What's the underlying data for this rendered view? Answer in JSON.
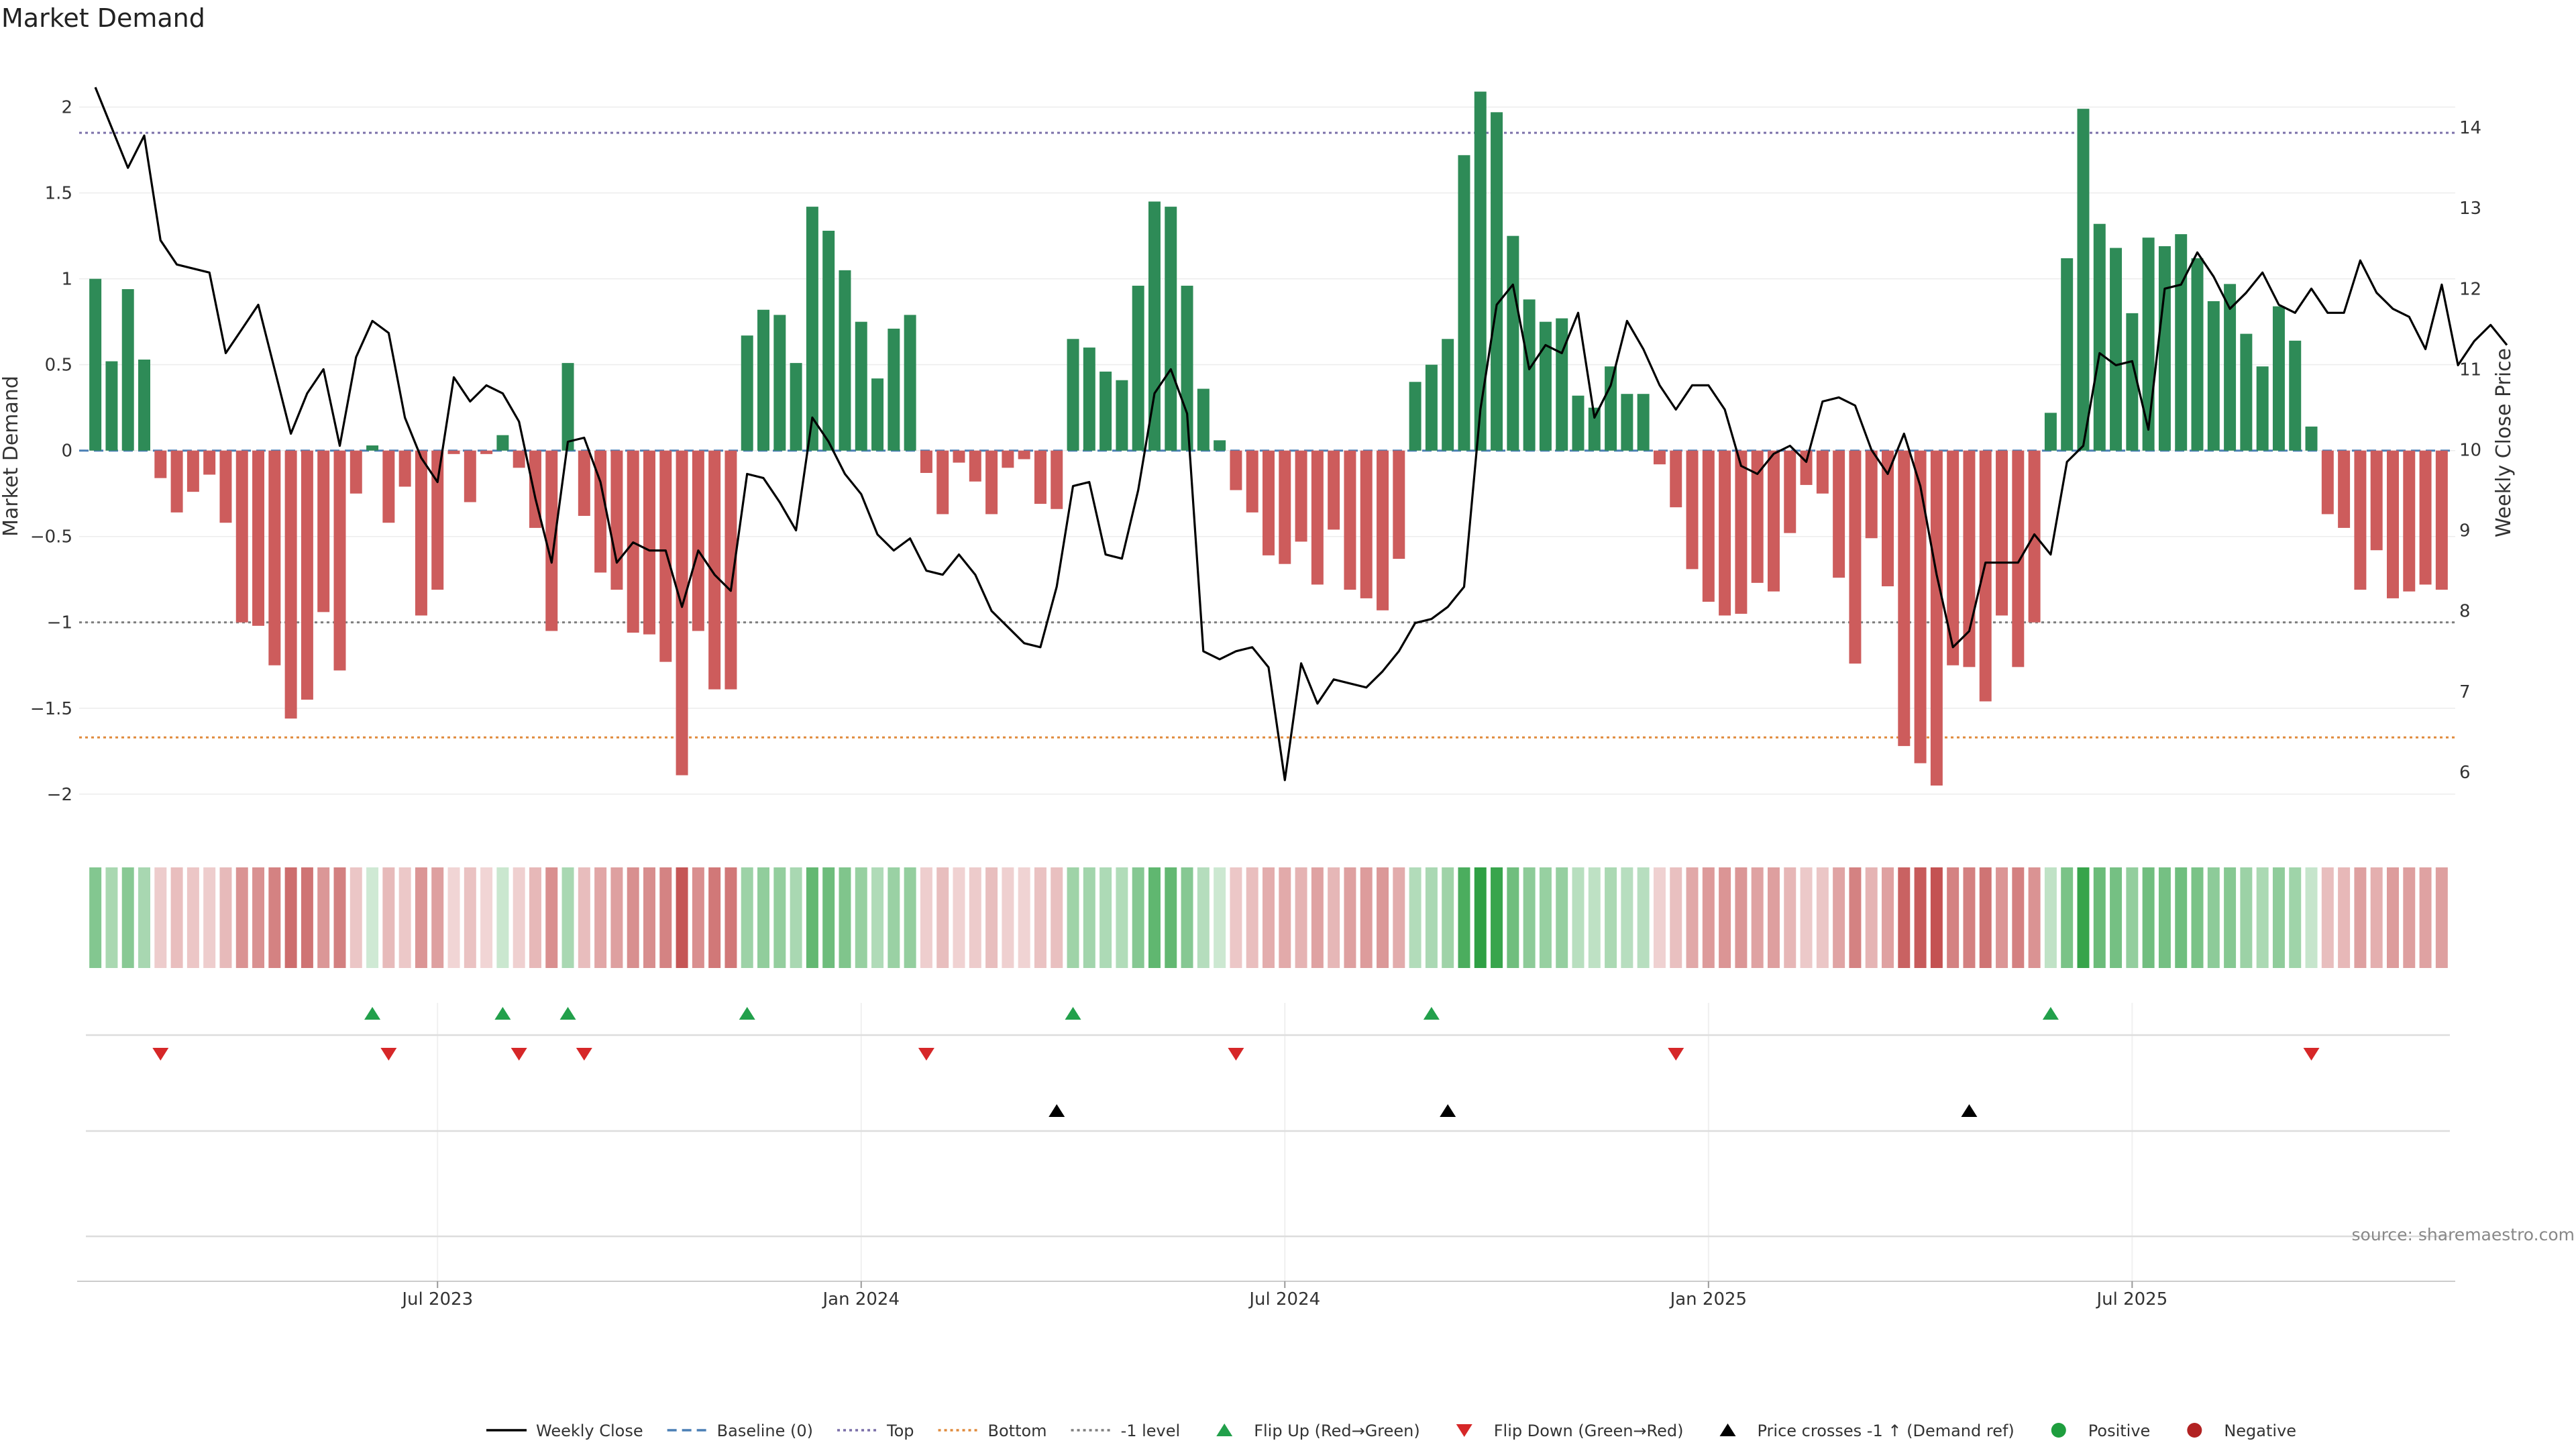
{
  "chart_data": {
    "type": "bar",
    "title": "Market Demand",
    "ylabel": "Market Demand",
    "y2label": "Weekly Close Price",
    "ylim": [
      -2.2,
      2.35
    ],
    "y2lim": [
      5.3,
      15.0
    ],
    "yticks": [
      -2,
      -1.5,
      -1,
      -0.5,
      0,
      0.5,
      1,
      1.5,
      2
    ],
    "yticks_labels": [
      "−2",
      "−1.5",
      "−1",
      "−0.5",
      "0",
      "0.5",
      "1",
      "1.5",
      "2"
    ],
    "y2ticks": [
      6,
      7,
      8,
      9,
      10,
      11,
      12,
      13,
      14
    ],
    "x_tick_labels": [
      {
        "index": 21,
        "label": "Jul 2023"
      },
      {
        "index": 47,
        "label": "Jan 2024"
      },
      {
        "index": 73,
        "label": "Jul 2024"
      },
      {
        "index": 99,
        "label": "Jan 2025"
      },
      {
        "index": 125,
        "label": "Jul 2025"
      }
    ],
    "reference_lines": {
      "baseline": 0,
      "top": 1.85,
      "bottom": -1.67,
      "minus_one_level": -1
    },
    "demand": [
      1.0,
      0.52,
      0.94,
      0.53,
      -0.16,
      -0.36,
      -0.24,
      -0.14,
      -0.42,
      -1.0,
      -1.02,
      -1.25,
      -1.56,
      -1.45,
      -0.94,
      -1.28,
      -0.25,
      0.03,
      -0.42,
      -0.21,
      -0.96,
      -0.81,
      -0.02,
      -0.3,
      -0.02,
      0.09,
      -0.1,
      -0.45,
      -1.05,
      0.51,
      -0.38,
      -0.71,
      -0.81,
      -1.06,
      -1.07,
      -1.23,
      -1.89,
      -1.05,
      -1.39,
      -1.39,
      0.67,
      0.82,
      0.79,
      0.51,
      1.42,
      1.28,
      1.05,
      0.75,
      0.42,
      0.71,
      0.79,
      -0.13,
      -0.37,
      -0.07,
      -0.18,
      -0.37,
      -0.1,
      -0.05,
      -0.31,
      -0.34,
      0.65,
      0.6,
      0.46,
      0.41,
      0.96,
      1.45,
      1.42,
      0.96,
      0.36,
      0.06,
      -0.23,
      -0.36,
      -0.61,
      -0.66,
      -0.53,
      -0.78,
      -0.46,
      -0.81,
      -0.86,
      -0.93,
      -0.63,
      0.4,
      0.5,
      0.65,
      1.72,
      2.09,
      1.97,
      1.25,
      0.88,
      0.75,
      0.77,
      0.32,
      0.25,
      0.49,
      0.33,
      0.33,
      -0.08,
      -0.33,
      -0.69,
      -0.88,
      -0.96,
      -0.95,
      -0.77,
      -0.82,
      -0.48,
      -0.2,
      -0.25,
      -0.74,
      -1.24,
      -0.51,
      -0.79,
      -1.72,
      -1.82,
      -1.95,
      -1.25,
      -1.26,
      -1.46,
      -0.96,
      -1.26,
      -1.0,
      0.22,
      1.12,
      1.99,
      1.32,
      1.18,
      0.8,
      1.24,
      1.19,
      1.26,
      1.12,
      0.87,
      0.97,
      0.68,
      0.49,
      0.84,
      0.64,
      0.14,
      -0.37,
      -0.45,
      -0.81,
      -0.58,
      -0.86,
      -0.82,
      -0.78,
      -0.81
    ],
    "weekly_close": [
      14.5,
      14.0,
      13.5,
      13.9,
      12.6,
      12.3,
      12.25,
      12.2,
      11.2,
      11.5,
      11.8,
      11.0,
      10.2,
      10.7,
      11.0,
      10.05,
      11.15,
      11.6,
      11.45,
      10.4,
      9.9,
      9.6,
      10.9,
      10.6,
      10.8,
      10.7,
      10.35,
      9.4,
      8.6,
      10.1,
      10.15,
      9.6,
      8.6,
      8.85,
      8.75,
      8.75,
      8.05,
      8.75,
      8.45,
      8.25,
      9.7,
      9.65,
      9.35,
      9.0,
      10.4,
      10.1,
      9.7,
      9.45,
      8.95,
      8.75,
      8.9,
      8.5,
      8.45,
      8.7,
      8.45,
      8.0,
      7.8,
      7.6,
      7.55,
      8.3,
      9.55,
      9.6,
      8.7,
      8.65,
      9.5,
      10.7,
      11.0,
      10.45,
      7.5,
      7.4,
      7.5,
      7.55,
      7.3,
      5.9,
      7.35,
      6.85,
      7.15,
      7.1,
      7.05,
      7.25,
      7.5,
      7.85,
      7.9,
      8.05,
      8.3,
      10.5,
      11.8,
      12.05,
      11.0,
      11.3,
      11.2,
      11.7,
      10.4,
      10.8,
      11.6,
      11.25,
      10.8,
      10.5,
      10.8,
      10.8,
      10.5,
      9.8,
      9.7,
      9.95,
      10.05,
      9.85,
      10.6,
      10.65,
      10.55,
      10.0,
      9.7,
      10.2,
      9.55,
      8.45,
      7.55,
      7.75,
      8.6,
      8.6,
      8.6,
      8.95,
      8.7,
      9.85,
      10.05,
      11.2,
      11.05,
      11.1,
      10.25,
      12.0,
      12.05,
      12.45,
      12.15,
      11.75,
      11.95,
      12.2,
      11.8,
      11.7,
      12.0,
      11.7,
      11.7,
      12.35,
      11.95,
      11.75,
      11.65,
      11.25,
      12.05,
      11.05,
      11.35,
      11.55,
      11.3
    ],
    "flip_up_indices": [
      17,
      25,
      29,
      40,
      60,
      82,
      120
    ],
    "flip_down_indices": [
      4,
      18,
      26,
      30,
      51,
      70,
      97,
      136
    ],
    "price_cross_indices": [
      59,
      83,
      115
    ],
    "legend": [
      {
        "label": "Weekly Close",
        "kind": "line-solid"
      },
      {
        "label": "Baseline (0)",
        "kind": "line-dash-blue"
      },
      {
        "label": "Top",
        "kind": "line-dot-purple"
      },
      {
        "label": "Bottom",
        "kind": "line-dot-orange"
      },
      {
        "label": "-1 level",
        "kind": "line-dot-gray"
      },
      {
        "label": "Flip Up (Red→Green)",
        "kind": "tri-up-green"
      },
      {
        "label": "Flip Down (Green→Red)",
        "kind": "tri-down-red"
      },
      {
        "label": "Price crosses -1 ↑ (Demand ref)",
        "kind": "tri-up-black"
      },
      {
        "label": "Positive",
        "kind": "dot-green"
      },
      {
        "label": "Negative",
        "kind": "dot-red"
      }
    ],
    "source": "source: sharemaestro.com"
  },
  "colors": {
    "positive": "#2e8b57",
    "negative": "#cd5c5c",
    "flip_up": "#22a04b",
    "flip_down": "#d62728",
    "cross": "#000000",
    "legend_positive": "#1e9e3e",
    "legend_negative": "#b22222"
  }
}
